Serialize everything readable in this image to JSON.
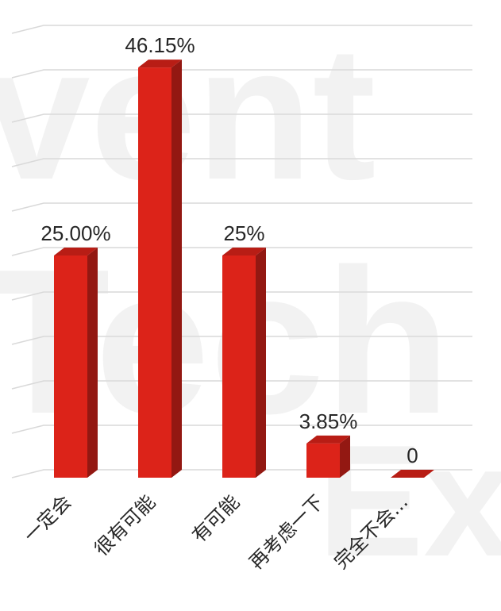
{
  "watermark": {
    "line1": "vent",
    "line2": "Tech",
    "line3": "Ex"
  },
  "chart_data": {
    "type": "bar",
    "title": "",
    "xlabel": "",
    "ylabel": "",
    "ylim": [
      0,
      50
    ],
    "grid": true,
    "legend": "none",
    "colors": {
      "bar_front": "#dc2319",
      "bar_side": "#931812",
      "bar_top": "#b81d15"
    },
    "categories": [
      "一定会",
      "很有可能",
      "有可能",
      "再考虑一下",
      "完全不会..."
    ],
    "series": [
      {
        "values": [
          25.0,
          46.15,
          25.0,
          3.85,
          0
        ]
      }
    ],
    "data_labels": [
      "25.00%",
      "46.15%",
      "25%",
      "3.85%",
      "0"
    ]
  }
}
